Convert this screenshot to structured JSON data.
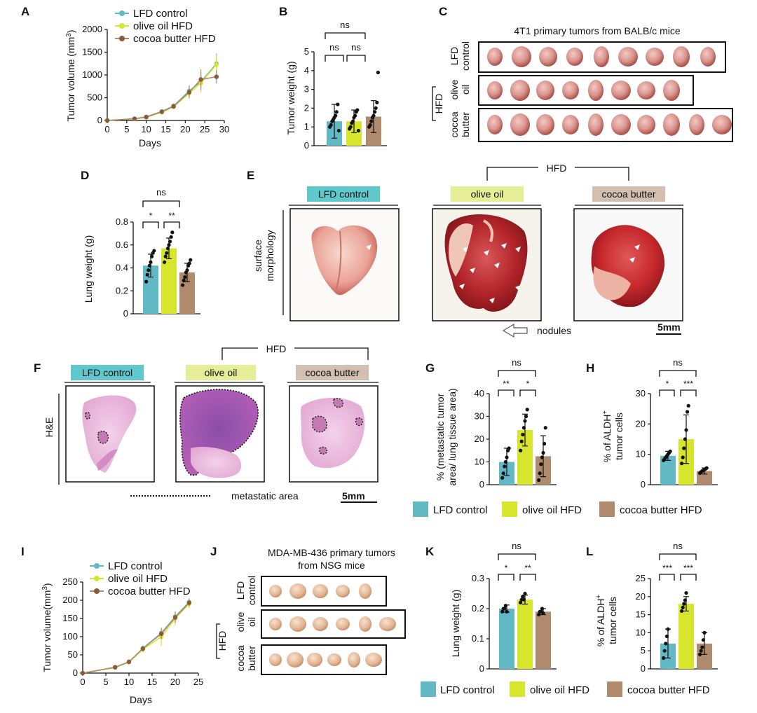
{
  "colors": {
    "lfd": "#62b8c4",
    "olive": "#d7e52c",
    "cocoa": "#b08a6d",
    "lfd_hdr": "#5fc8cc",
    "olive_hdr": "#e6ee98",
    "cocoa_hdr": "#d2bfb1"
  },
  "legend": {
    "lfd": "LFD control",
    "olive": "olive oil HFD",
    "cocoa": "cocoa butter HFD"
  },
  "panels": {
    "A": {
      "letter": "A",
      "xlabel": "Days",
      "ylabel": "Tumor volume (mm",
      "ylabel_sup": "3",
      "ylabel_end": ")"
    },
    "B": {
      "letter": "B",
      "ylabel": "Tumor weight (g)",
      "ns_top": "ns",
      "ns_left": "ns",
      "ns_right": "ns"
    },
    "C": {
      "letter": "C",
      "title": "4T1 primary tumors from BALB/c mice",
      "row1a": "LFD",
      "row1b": "control",
      "row2a": "olive",
      "row2b": "oil",
      "row3a": "cocoa",
      "row3b": "butter",
      "hfd": "HFD"
    },
    "D": {
      "letter": "D",
      "ylabel": "Lung weight (g)",
      "ns_top": "ns",
      "sig_left": "*",
      "sig_right": "**"
    },
    "E": {
      "letter": "E",
      "hfd": "HFD",
      "hdr_lfd": "LFD control",
      "hdr_olive": "olive oil",
      "hdr_cocoa": "cocoa butter",
      "side1": "surface",
      "side2": "morphology",
      "nodules": "nodules",
      "scale": "5mm"
    },
    "F": {
      "letter": "F",
      "hfd": "HFD",
      "hdr_lfd": "LFD control",
      "hdr_olive": "olive oil",
      "hdr_cocoa": "cocoa butter",
      "side": "H&E",
      "metastatic": "metastatic area",
      "scale": "5mm"
    },
    "G": {
      "letter": "G",
      "ylabel1": "% (metastatic tumor",
      "ylabel2": "area/ lung tissue area)",
      "ns_top": "ns",
      "sig_left": "**",
      "sig_right": "*"
    },
    "H": {
      "letter": "H",
      "ylabel1": "% of ALDH",
      "ylabel1_sup": "+",
      "ylabel2": "tumor cells",
      "ns_top": "ns",
      "sig_left": "*",
      "sig_right": "***"
    },
    "I": {
      "letter": "I",
      "xlabel": "Days",
      "ylabel": "Tumor volume(mm",
      "ylabel_sup": "3",
      "ylabel_end": ")"
    },
    "J": {
      "letter": "J",
      "title1": "MDA-MB-436 primary tumors",
      "title2": "from NSG mice",
      "row1a": "LFD",
      "row1b": "control",
      "row2a": "olive",
      "row2b": "oil",
      "row3a": "cocoa",
      "row3b": "butter",
      "hfd": "HFD"
    },
    "K": {
      "letter": "K",
      "ylabel": "Lung weight (g)",
      "ns_top": "ns",
      "sig_left": "*",
      "sig_right": "**"
    },
    "L": {
      "letter": "L",
      "ylabel1": "% of ALDH",
      "ylabel1_sup": "+",
      "ylabel2": "tumor cells",
      "ns_top": "ns",
      "sig_left": "***",
      "sig_right": "***"
    }
  },
  "chart_data": [
    {
      "panel": "A",
      "type": "line",
      "x": [
        0,
        7,
        10,
        14,
        17,
        21,
        24,
        28
      ],
      "series": [
        {
          "name": "LFD control",
          "values": [
            0,
            40,
            80,
            200,
            320,
            650,
            850,
            1250
          ],
          "err": [
            0,
            10,
            15,
            30,
            50,
            120,
            180,
            220
          ]
        },
        {
          "name": "olive oil HFD",
          "values": [
            0,
            35,
            70,
            180,
            300,
            600,
            820,
            1230
          ],
          "err": [
            0,
            10,
            15,
            30,
            50,
            110,
            200,
            200
          ]
        },
        {
          "name": "cocoa butter HFD",
          "values": [
            0,
            38,
            75,
            190,
            310,
            620,
            900,
            960
          ],
          "err": [
            0,
            10,
            15,
            30,
            50,
            130,
            220,
            150
          ]
        }
      ],
      "xlim": [
        0,
        30
      ],
      "ylim": [
        0,
        2000
      ],
      "xticks": [
        0,
        5,
        10,
        15,
        20,
        25,
        30
      ],
      "yticks": [
        0,
        500,
        1000,
        1500,
        2000
      ]
    },
    {
      "panel": "B",
      "type": "bar",
      "categories": [
        "LFD control",
        "olive oil HFD",
        "cocoa butter HFD"
      ],
      "values": [
        1.3,
        1.3,
        1.55
      ],
      "err": [
        0.9,
        0.6,
        0.85
      ],
      "points": [
        [
          1.0,
          1.1,
          1.3,
          1.4,
          1.5,
          1.6,
          1.8,
          2.2,
          0.8
        ],
        [
          0.9,
          1.0,
          1.2,
          1.3,
          1.5,
          1.6,
          1.8,
          1.9,
          0.8
        ],
        [
          1.0,
          1.1,
          1.3,
          1.5,
          1.6,
          1.8,
          2.0,
          2.3,
          3.9
        ]
      ],
      "ylim": [
        0,
        5
      ],
      "yticks": [
        0,
        1,
        2,
        3,
        4,
        5
      ]
    },
    {
      "panel": "D",
      "type": "bar",
      "categories": [
        "LFD control",
        "olive oil HFD",
        "cocoa butter HFD"
      ],
      "values": [
        0.42,
        0.57,
        0.36
      ],
      "err": [
        0.1,
        0.09,
        0.08
      ],
      "points": [
        [
          0.28,
          0.34,
          0.38,
          0.42,
          0.45,
          0.5,
          0.53,
          0.55
        ],
        [
          0.45,
          0.5,
          0.53,
          0.57,
          0.6,
          0.63,
          0.67,
          0.71
        ],
        [
          0.25,
          0.29,
          0.32,
          0.36,
          0.38,
          0.42,
          0.44,
          0.47
        ]
      ],
      "ylim": [
        0,
        0.8
      ],
      "yticks": [
        0,
        0.2,
        0.4,
        0.6,
        0.8
      ]
    },
    {
      "panel": "G",
      "type": "bar",
      "categories": [
        "LFD control",
        "olive oil HFD",
        "cocoa butter HFD"
      ],
      "values": [
        10,
        24,
        12.5
      ],
      "err": [
        6,
        7,
        9
      ],
      "points": [
        [
          3,
          5,
          8,
          10,
          12,
          15,
          16
        ],
        [
          15,
          19,
          22,
          25,
          28,
          30,
          33
        ],
        [
          2,
          5,
          9,
          12,
          14,
          18,
          25
        ]
      ],
      "ylim": [
        0,
        40
      ],
      "yticks": [
        0,
        10,
        20,
        30,
        40
      ]
    },
    {
      "panel": "H",
      "type": "bar",
      "categories": [
        "LFD control",
        "olive oil HFD",
        "cocoa butter HFD"
      ],
      "values": [
        9.5,
        15,
        4.5
      ],
      "err": [
        1.5,
        8,
        1
      ],
      "points": [
        [
          8,
          8.5,
          9,
          9.5,
          10,
          10.5,
          11
        ],
        [
          7,
          9,
          12,
          15,
          18,
          24,
          26
        ],
        [
          3.8,
          4.2,
          4.5,
          4.7,
          5,
          5.2,
          5.5
        ]
      ],
      "ylim": [
        0,
        30
      ],
      "yticks": [
        0,
        10,
        20,
        30
      ]
    },
    {
      "panel": "I",
      "type": "line",
      "x": [
        0,
        7,
        10,
        13,
        17,
        20,
        23
      ],
      "series": [
        {
          "name": "LFD control",
          "values": [
            0,
            16,
            30,
            68,
            110,
            155,
            195
          ],
          "err": [
            0,
            3,
            4,
            8,
            15,
            15,
            10
          ]
        },
        {
          "name": "olive oil HFD",
          "values": [
            0,
            15,
            30,
            65,
            100,
            150,
            190
          ],
          "err": [
            0,
            3,
            4,
            8,
            25,
            20,
            12
          ]
        },
        {
          "name": "cocoa butter HFD",
          "values": [
            0,
            16,
            31,
            67,
            108,
            153,
            193
          ],
          "err": [
            0,
            3,
            4,
            8,
            15,
            15,
            10
          ]
        }
      ],
      "xlim": [
        0,
        25
      ],
      "ylim": [
        0,
        250
      ],
      "xticks": [
        0,
        5,
        10,
        15,
        20,
        25
      ],
      "yticks": [
        0,
        50,
        100,
        150,
        200,
        250
      ]
    },
    {
      "panel": "K",
      "type": "bar",
      "categories": [
        "LFD control",
        "olive oil HFD",
        "cocoa butter HFD"
      ],
      "values": [
        0.2,
        0.23,
        0.19
      ],
      "err": [
        0.012,
        0.015,
        0.01
      ],
      "points": [
        [
          0.19,
          0.2,
          0.2,
          0.21,
          0.19
        ],
        [
          0.22,
          0.23,
          0.24,
          0.23,
          0.25
        ],
        [
          0.18,
          0.19,
          0.19,
          0.2,
          0.185
        ]
      ],
      "ylim": [
        0,
        0.3
      ],
      "yticks": [
        0,
        0.1,
        0.2,
        0.3
      ]
    },
    {
      "panel": "L",
      "type": "bar",
      "categories": [
        "LFD control",
        "olive oil HFD",
        "cocoa butter HFD"
      ],
      "values": [
        7,
        18,
        7
      ],
      "err": [
        4,
        2,
        3
      ],
      "points": [
        [
          3,
          5,
          7,
          9,
          11
        ],
        [
          16,
          17,
          18,
          19,
          21
        ],
        [
          4,
          5,
          6,
          8,
          10
        ]
      ],
      "ylim": [
        0,
        25
      ],
      "yticks": [
        0,
        5,
        10,
        15,
        20,
        25
      ]
    }
  ]
}
